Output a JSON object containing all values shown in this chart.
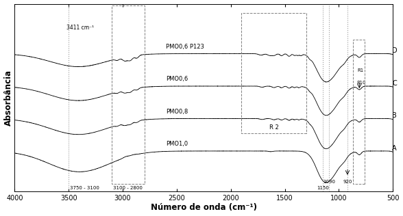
{
  "title": "",
  "xlabel": "Número de onda (cm⁻¹)",
  "ylabel": "Absorbância",
  "xlim": [
    4000,
    500
  ],
  "background_color": "#ffffff",
  "labels_right": [
    "A",
    "B",
    "C",
    "D"
  ],
  "labels_center": [
    "PMO1,0",
    "PMO0,8",
    "PMO0,6",
    "PMO0,6 P123"
  ],
  "annot_3411": "3411 cm⁻¹",
  "annot_3750": "3750 - 3100",
  "annot_3100": "3100 - 2800",
  "annot_R2": "R 2",
  "annot_1150": "1150",
  "annot_1090": "1090",
  "annot_920": "920",
  "annot_R1": "R1",
  "annot_810": "810",
  "offsets": [
    0.0,
    0.18,
    0.36,
    0.54
  ]
}
